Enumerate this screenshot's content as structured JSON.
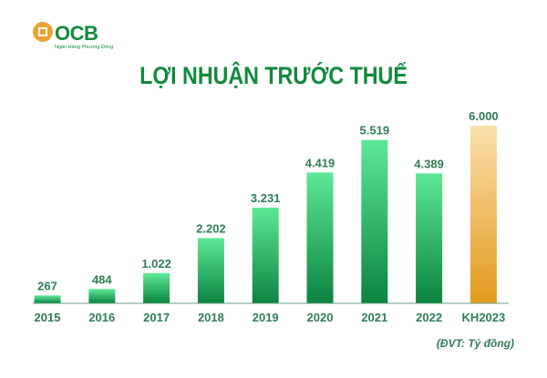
{
  "logo": {
    "name": "OCB",
    "tagline": "Ngân Hàng Phương Đông"
  },
  "chart_data": {
    "type": "bar",
    "title": "LỢI NHUẬN TRƯỚC THUẾ",
    "unit_note": "(ĐVT: Tỷ đồng)",
    "categories": [
      "2015",
      "2016",
      "2017",
      "2018",
      "2019",
      "2020",
      "2021",
      "2022",
      "KH2023"
    ],
    "values": [
      267,
      484,
      1022,
      2202,
      3231,
      4419,
      5519,
      4389,
      6000
    ],
    "value_labels": [
      "267",
      "484",
      "1.022",
      "2.202",
      "3.231",
      "4.419",
      "5.519",
      "4.389",
      "6.000"
    ],
    "ylim": [
      0,
      6000
    ],
    "grid": false,
    "colors": {
      "actual_top": "#5ee896",
      "actual_bottom": "#0b8440",
      "plan_top": "#fbe0ac",
      "plan_bottom": "#e29a1e",
      "title": "#10893c"
    }
  }
}
